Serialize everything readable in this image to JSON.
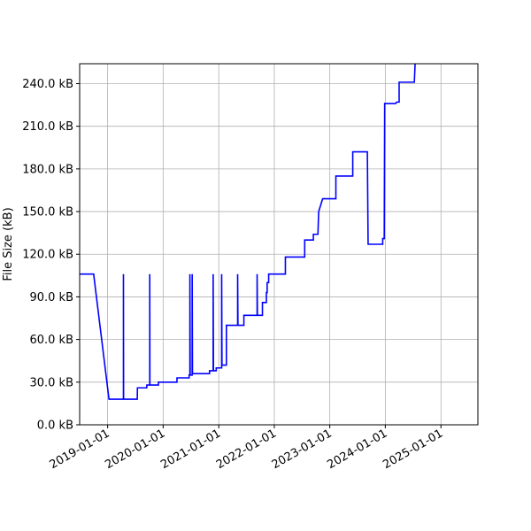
{
  "chart_data": {
    "type": "line",
    "title": "",
    "xlabel": "",
    "ylabel": "File Size (kB)",
    "y_unit": "kB",
    "ylim": [
      0,
      254
    ],
    "xlim": [
      "2018-07-01",
      "2025-09-01"
    ],
    "grid": true,
    "y_ticks": [
      {
        "value": 0,
        "label": "0.0 kB"
      },
      {
        "value": 30,
        "label": "30.0 kB"
      },
      {
        "value": 60,
        "label": "60.0 kB"
      },
      {
        "value": 90,
        "label": "90.0 kB"
      },
      {
        "value": 120,
        "label": "120.0 kB"
      },
      {
        "value": 150,
        "label": "150.0 kB"
      },
      {
        "value": 180,
        "label": "180.0 kB"
      },
      {
        "value": 210,
        "label": "210.0 kB"
      },
      {
        "value": 240,
        "label": "240.0 kB"
      }
    ],
    "x_ticks": [
      {
        "value": "2019-01-01",
        "label": "2019-01-01"
      },
      {
        "value": "2020-01-01",
        "label": "2020-01-01"
      },
      {
        "value": "2021-01-01",
        "label": "2021-01-01"
      },
      {
        "value": "2022-01-01",
        "label": "2022-01-01"
      },
      {
        "value": "2023-01-01",
        "label": "2023-01-01"
      },
      {
        "value": "2024-01-01",
        "label": "2024-01-01"
      },
      {
        "value": "2025-01-01",
        "label": "2025-01-01"
      }
    ],
    "series": [
      {
        "color": "#0000ff",
        "points": [
          [
            "2018-07-01",
            106
          ],
          [
            "2018-10-01",
            106
          ],
          [
            "2019-01-10",
            18
          ],
          [
            "2019-04-15",
            18
          ],
          [
            "2019-04-15",
            106
          ],
          [
            "2019-04-16",
            18
          ],
          [
            "2019-07-15",
            18
          ],
          [
            "2019-07-16",
            26
          ],
          [
            "2019-09-15",
            26
          ],
          [
            "2019-09-16",
            28
          ],
          [
            "2019-10-05",
            28
          ],
          [
            "2019-10-05",
            106
          ],
          [
            "2019-10-06",
            28
          ],
          [
            "2019-12-01",
            28
          ],
          [
            "2019-12-01",
            30
          ],
          [
            "2020-04-01",
            30
          ],
          [
            "2020-04-01",
            33
          ],
          [
            "2020-06-20",
            33
          ],
          [
            "2020-06-20",
            35
          ],
          [
            "2020-06-25",
            35
          ],
          [
            "2020-06-25",
            106
          ],
          [
            "2020-06-27",
            35
          ],
          [
            "2020-07-10",
            35
          ],
          [
            "2020-07-10",
            106
          ],
          [
            "2020-07-12",
            36
          ],
          [
            "2020-11-01",
            36
          ],
          [
            "2020-11-01",
            38
          ],
          [
            "2020-11-25",
            38
          ],
          [
            "2020-11-25",
            106
          ],
          [
            "2020-11-27",
            38
          ],
          [
            "2020-12-15",
            38
          ],
          [
            "2020-12-15",
            40
          ],
          [
            "2021-01-20",
            40
          ],
          [
            "2021-01-20",
            106
          ],
          [
            "2021-01-22",
            42
          ],
          [
            "2021-02-20",
            42
          ],
          [
            "2021-02-20",
            70
          ],
          [
            "2021-05-05",
            70
          ],
          [
            "2021-05-05",
            106
          ],
          [
            "2021-05-07",
            70
          ],
          [
            "2021-06-15",
            70
          ],
          [
            "2021-06-15",
            77
          ],
          [
            "2021-09-10",
            77
          ],
          [
            "2021-09-10",
            106
          ],
          [
            "2021-09-12",
            77
          ],
          [
            "2021-10-15",
            77
          ],
          [
            "2021-10-15",
            86
          ],
          [
            "2021-11-10",
            86
          ],
          [
            "2021-11-10",
            93
          ],
          [
            "2021-11-15",
            93
          ],
          [
            "2021-11-15",
            100
          ],
          [
            "2021-11-25",
            100
          ],
          [
            "2021-11-25",
            106
          ],
          [
            "2022-03-15",
            106
          ],
          [
            "2022-03-15",
            118
          ],
          [
            "2022-07-20",
            118
          ],
          [
            "2022-07-20",
            130
          ],
          [
            "2022-09-15",
            130
          ],
          [
            "2022-09-15",
            134
          ],
          [
            "2022-10-15",
            134
          ],
          [
            "2022-10-20",
            150
          ],
          [
            "2022-11-15",
            159
          ],
          [
            "2023-02-10",
            159
          ],
          [
            "2023-02-10",
            175
          ],
          [
            "2023-06-01",
            175
          ],
          [
            "2023-06-01",
            192
          ],
          [
            "2023-09-05",
            192
          ],
          [
            "2023-09-10",
            127
          ],
          [
            "2023-12-15",
            127
          ],
          [
            "2023-12-15",
            131
          ],
          [
            "2023-12-25",
            131
          ],
          [
            "2023-12-28",
            226
          ],
          [
            "2024-03-10",
            226
          ],
          [
            "2024-03-15",
            227
          ],
          [
            "2024-04-01",
            227
          ],
          [
            "2024-04-01",
            241
          ],
          [
            "2024-07-10",
            241
          ],
          [
            "2024-07-15",
            254
          ]
        ]
      }
    ]
  }
}
